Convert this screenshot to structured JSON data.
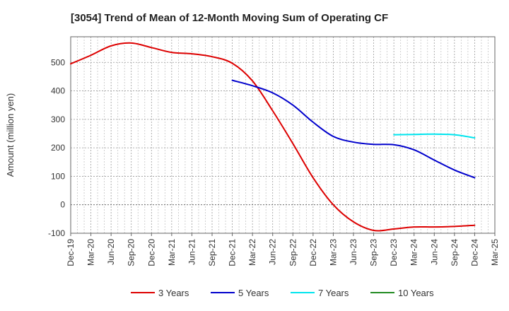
{
  "chart_data": {
    "type": "line",
    "title": "[3054]  Trend of Mean of 12-Month Moving Sum of Operating CF",
    "xlabel": "",
    "ylabel": "Amount (million yen)",
    "ylim": [
      -100,
      590
    ],
    "yticks": [
      -100,
      0,
      100,
      200,
      300,
      400,
      500
    ],
    "grid": true,
    "legend_position": "bottom",
    "categories": [
      "Dec-19",
      "Mar-20",
      "Jun-20",
      "Sep-20",
      "Dec-20",
      "Mar-21",
      "Jun-21",
      "Sep-21",
      "Dec-21",
      "Mar-22",
      "Jun-22",
      "Sep-22",
      "Dec-22",
      "Mar-23",
      "Jun-23",
      "Sep-23",
      "Dec-23",
      "Mar-24",
      "Jun-24",
      "Sep-24",
      "Dec-24",
      "Mar-25"
    ],
    "series": [
      {
        "name": "3 Years",
        "color": "#dd0000",
        "values": [
          495,
          525,
          558,
          568,
          552,
          535,
          530,
          520,
          497,
          435,
          330,
          215,
          95,
          0,
          -60,
          -90,
          -85,
          -78,
          -78,
          -76,
          -72,
          null
        ]
      },
      {
        "name": "5 Years",
        "color": "#0000cc",
        "values": [
          null,
          null,
          null,
          null,
          null,
          null,
          null,
          null,
          437,
          418,
          393,
          350,
          290,
          240,
          220,
          212,
          211,
          193,
          157,
          122,
          95,
          null
        ]
      },
      {
        "name": "7 Years",
        "color": "#00e5ee",
        "values": [
          null,
          null,
          null,
          null,
          null,
          null,
          null,
          null,
          null,
          null,
          null,
          null,
          null,
          null,
          null,
          null,
          246,
          247,
          248,
          246,
          235,
          null
        ]
      },
      {
        "name": "10 Years",
        "color": "#228b22",
        "values": [
          null,
          null,
          null,
          null,
          null,
          null,
          null,
          null,
          null,
          null,
          null,
          null,
          null,
          null,
          null,
          null,
          null,
          null,
          null,
          null,
          null,
          null
        ]
      }
    ]
  }
}
